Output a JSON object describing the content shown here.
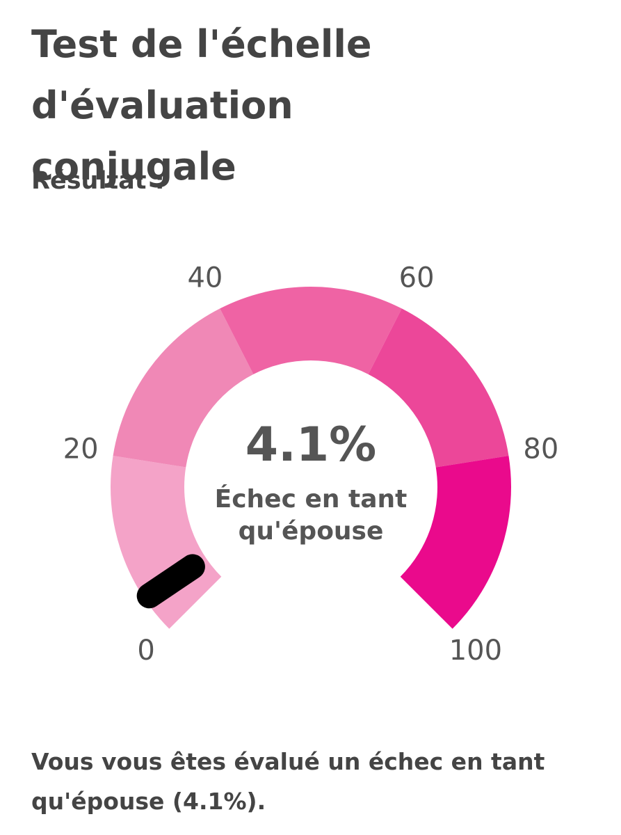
{
  "chart_data": {
    "type": "gauge",
    "title": "Test de l'échelle d'évaluation conjugale",
    "subtitle": "Résultat :",
    "value": 4.1,
    "value_label": "4.1%",
    "label": "Échec en tant qu'épouse",
    "lim": [
      0,
      100
    ],
    "ticks": [
      0,
      20,
      40,
      60,
      80,
      100
    ],
    "band_colors": [
      "#f4a3c8",
      "#f088b6",
      "#ef63a4",
      "#ec4799",
      "#ea0a8c"
    ],
    "needle_color": "#000000",
    "caption": "Vous vous êtes évalué un échec en tant qu'épouse (4.1%)."
  }
}
